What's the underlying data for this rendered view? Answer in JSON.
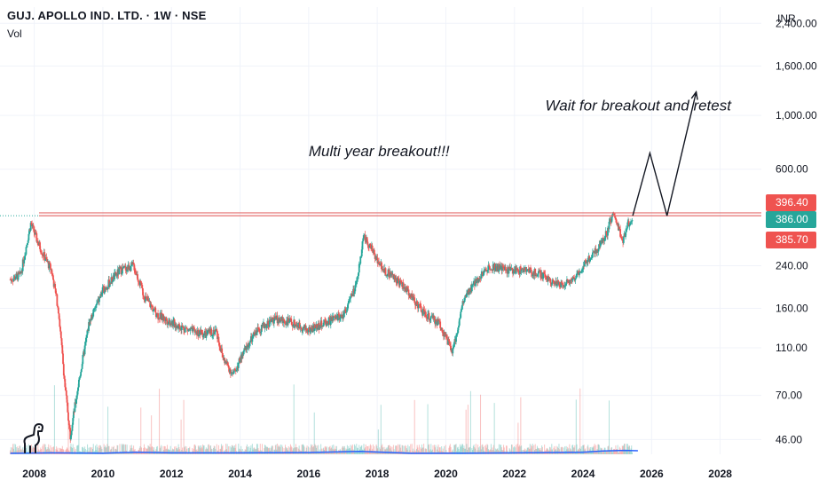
{
  "header": {
    "title": "GUJ. APOLLO IND. LTD. · 1W · NSE",
    "indicator": "Vol",
    "currency": "INR"
  },
  "colors": {
    "up": "#26a69a",
    "down": "#ef5350",
    "resistance": "#e57373",
    "volume_ma": "#2962ff",
    "tag_red": "#ef5350",
    "tag_green": "#26a69a"
  },
  "chart_data": {
    "type": "candlestick",
    "scale": "log",
    "ylim": [
      40,
      2800
    ],
    "xlim": [
      2007.0,
      2029.2
    ],
    "y_ticks": [
      {
        "value": 2400,
        "label": "2,400.00"
      },
      {
        "value": 1600,
        "label": "1,600.00"
      },
      {
        "value": 1000,
        "label": "1,000.00"
      },
      {
        "value": 600,
        "label": "600.00"
      },
      {
        "value": 240,
        "label": "240.00"
      },
      {
        "value": 160,
        "label": "160.00"
      },
      {
        "value": 110,
        "label": "110.00"
      },
      {
        "value": 70,
        "label": "70.00"
      },
      {
        "value": 46,
        "label": "46.00"
      }
    ],
    "x_ticks": [
      "2008",
      "2010",
      "2012",
      "2014",
      "2016",
      "2018",
      "2020",
      "2022",
      "2024",
      "2026",
      "2028"
    ],
    "price_path": [
      [
        2007.3,
        210
      ],
      [
        2007.6,
        220
      ],
      [
        2007.9,
        360
      ],
      [
        2008.1,
        300
      ],
      [
        2008.3,
        260
      ],
      [
        2008.5,
        230
      ],
      [
        2008.7,
        160
      ],
      [
        2008.9,
        75
      ],
      [
        2009.05,
        48
      ],
      [
        2009.3,
        80
      ],
      [
        2009.6,
        140
      ],
      [
        2010.0,
        190
      ],
      [
        2010.5,
        230
      ],
      [
        2010.9,
        240
      ],
      [
        2011.2,
        180
      ],
      [
        2011.6,
        150
      ],
      [
        2012.0,
        140
      ],
      [
        2012.5,
        130
      ],
      [
        2013.0,
        125
      ],
      [
        2013.3,
        130
      ],
      [
        2013.5,
        100
      ],
      [
        2013.8,
        85
      ],
      [
        2014.1,
        105
      ],
      [
        2014.5,
        130
      ],
      [
        2015.0,
        145
      ],
      [
        2015.5,
        140
      ],
      [
        2016.0,
        130
      ],
      [
        2016.5,
        140
      ],
      [
        2017.0,
        150
      ],
      [
        2017.4,
        200
      ],
      [
        2017.6,
        320
      ],
      [
        2017.9,
        270
      ],
      [
        2018.2,
        230
      ],
      [
        2018.6,
        210
      ],
      [
        2019.0,
        180
      ],
      [
        2019.4,
        150
      ],
      [
        2019.8,
        140
      ],
      [
        2020.2,
        105
      ],
      [
        2020.5,
        170
      ],
      [
        2020.9,
        210
      ],
      [
        2021.3,
        240
      ],
      [
        2021.8,
        230
      ],
      [
        2022.3,
        230
      ],
      [
        2022.8,
        220
      ],
      [
        2023.3,
        200
      ],
      [
        2023.7,
        210
      ],
      [
        2024.0,
        240
      ],
      [
        2024.4,
        280
      ],
      [
        2024.7,
        330
      ],
      [
        2024.85,
        390
      ],
      [
        2025.0,
        360
      ],
      [
        2025.15,
        300
      ],
      [
        2025.3,
        350
      ],
      [
        2025.45,
        386
      ]
    ],
    "resistance_levels": [
      396.4,
      385.7
    ],
    "projection": [
      [
        2025.45,
        386
      ],
      [
        2025.95,
        700
      ],
      [
        2026.45,
        386
      ],
      [
        2027.3,
        1250
      ]
    ],
    "volume_ma": [
      [
        2007.3,
        0.08
      ],
      [
        2008.5,
        0.12
      ],
      [
        2010.0,
        0.1
      ],
      [
        2011.0,
        0.18
      ],
      [
        2012.0,
        0.12
      ],
      [
        2014.0,
        0.12
      ],
      [
        2016.0,
        0.15
      ],
      [
        2017.5,
        0.25
      ],
      [
        2019.0,
        0.08
      ],
      [
        2020.5,
        0.1
      ],
      [
        2022.0,
        0.12
      ],
      [
        2024.0,
        0.18
      ],
      [
        2024.6,
        0.28
      ],
      [
        2025.2,
        0.33
      ],
      [
        2025.6,
        0.3
      ]
    ],
    "price_tags": [
      {
        "value": 396.4,
        "label": "396.40",
        "color": "tag_red"
      },
      {
        "value": 386.0,
        "label": "386.00",
        "color": "tag_green"
      },
      {
        "value": 385.7,
        "label": "385.70",
        "color": "tag_red"
      }
    ],
    "annotations": [
      {
        "text": "Multi year breakout!!!",
        "x": 2016.0,
        "y": 680
      },
      {
        "text": "Wait for breakout and retest",
        "x": 2022.9,
        "y": 1050
      }
    ]
  }
}
